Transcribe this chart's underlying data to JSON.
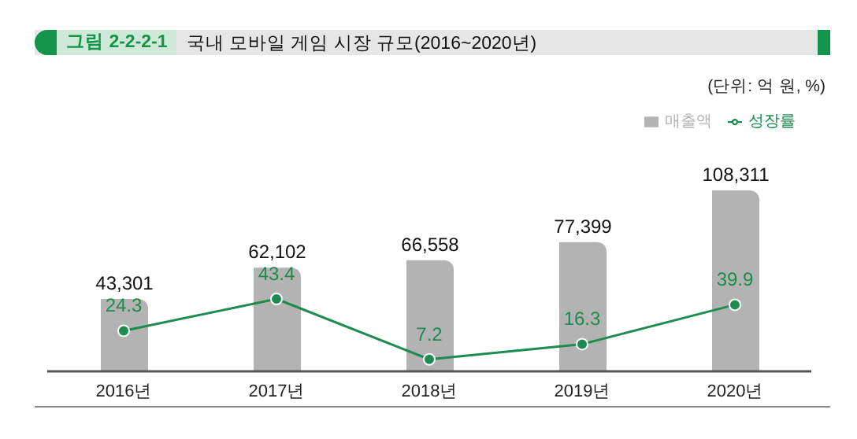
{
  "chart_data": {
    "type": "bar",
    "title": "국내 모바일 게임 시장 규모(2016~2020년)",
    "annotations": [
      "그림 2-2-2-1",
      "(단위: 억 원, %)"
    ],
    "categories": [
      "2016년",
      "2017년",
      "2018년",
      "2019년",
      "2020년"
    ],
    "series": [
      {
        "name": "매출액",
        "color": "#b3b3b3",
        "values": [
          43301,
          62102,
          66558,
          77399,
          108311
        ],
        "value_labels": [
          "43,301",
          "62,102",
          "66,558",
          "77,399",
          "108,311"
        ]
      },
      {
        "name": "성장률",
        "type": "line",
        "axis": "y2",
        "color": "#1e8c4e",
        "values": [
          24.3,
          43.4,
          7.2,
          16.3,
          39.9
        ]
      }
    ],
    "tick_labels": "x",
    "data_labels": true,
    "legend": "top right",
    "marker": "circle"
  }
}
